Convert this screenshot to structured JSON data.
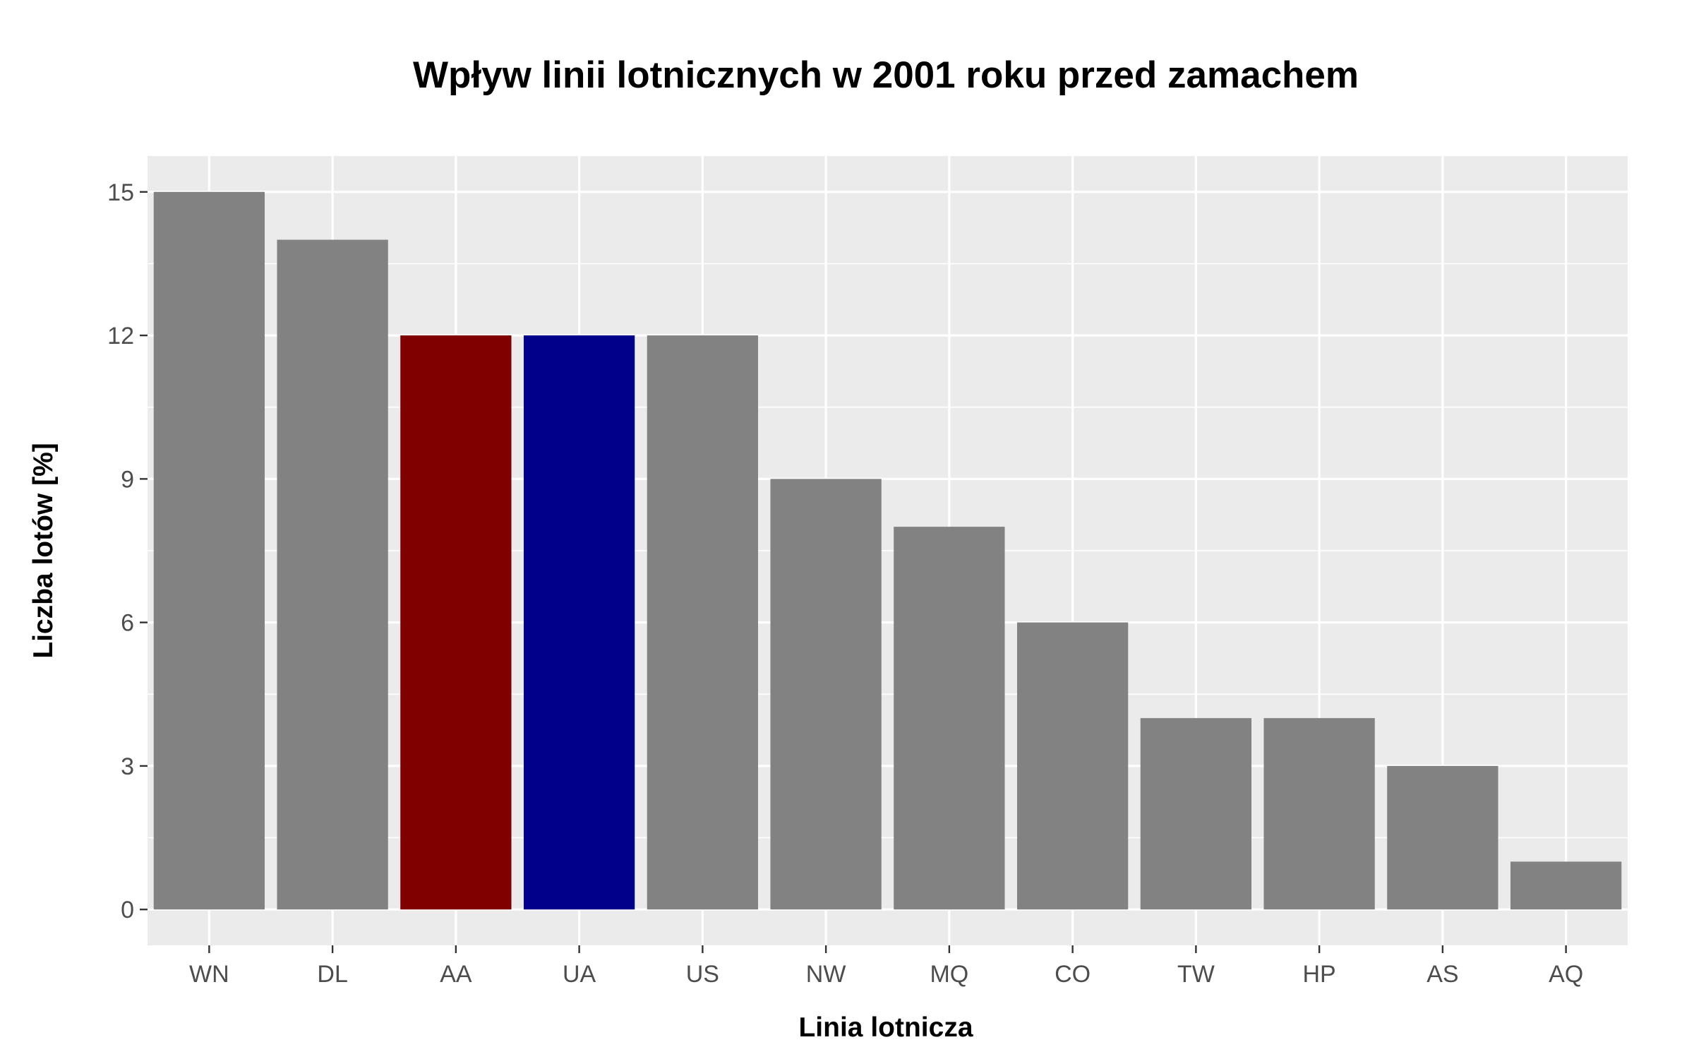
{
  "chart_data": {
    "type": "bar",
    "title": "Wpływ linii lotnicznych w 2001 roku przed zamachem",
    "xlabel": "Linia lotnicza",
    "ylabel": "Liczba lotów [%]",
    "categories": [
      "WN",
      "DL",
      "AA",
      "UA",
      "US",
      "NW",
      "MQ",
      "CO",
      "TW",
      "HP",
      "AS",
      "AQ"
    ],
    "values": [
      15,
      14,
      12,
      12,
      12,
      9,
      8,
      6,
      4,
      4,
      3,
      1
    ],
    "bar_colors": [
      "#828282",
      "#828282",
      "#800000",
      "#00008B",
      "#828282",
      "#828282",
      "#828282",
      "#828282",
      "#828282",
      "#828282",
      "#828282",
      "#828282"
    ],
    "ylim": [
      -0.75,
      15.75
    ],
    "yticks": [
      0,
      3,
      6,
      9,
      12,
      15
    ],
    "ytick_labels": [
      "0",
      "3",
      "6",
      "9",
      "12",
      "15"
    ],
    "grid": true,
    "legend": "none",
    "panel_background": "#EBEBEB",
    "grid_color": "#FFFFFF"
  }
}
